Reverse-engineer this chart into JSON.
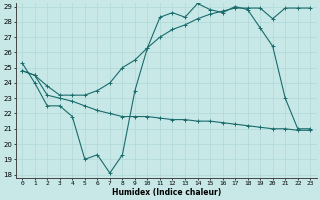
{
  "xlabel": "Humidex (Indice chaleur)",
  "xlim": [
    -0.5,
    23.5
  ],
  "ylim": [
    18,
    29
  ],
  "yticks": [
    18,
    19,
    20,
    21,
    22,
    23,
    24,
    25,
    26,
    27,
    28,
    29
  ],
  "xticks": [
    0,
    1,
    2,
    3,
    4,
    5,
    6,
    7,
    8,
    9,
    10,
    11,
    12,
    13,
    14,
    15,
    16,
    17,
    18,
    19,
    20,
    21,
    22,
    23
  ],
  "bg_color": "#c8e8e8",
  "grid_color": "#b0d8d8",
  "line_color": "#1a6b6b",
  "line1_x": [
    0,
    1,
    2,
    3,
    4,
    5,
    6,
    7,
    8,
    9,
    10,
    11,
    12,
    13,
    14,
    15,
    16,
    17,
    18,
    19,
    20,
    21,
    22,
    23
  ],
  "line1_y": [
    25.3,
    24.0,
    22.5,
    22.5,
    21.8,
    19.0,
    19.3,
    18.1,
    19.3,
    23.5,
    26.3,
    28.3,
    28.6,
    28.3,
    29.2,
    28.8,
    28.6,
    29.0,
    28.8,
    27.6,
    26.4,
    23.0,
    21.0,
    21.0
  ],
  "line2_x": [
    0,
    1,
    2,
    3,
    4,
    5,
    6,
    7,
    8,
    9,
    10,
    11,
    12,
    13,
    14,
    15,
    16,
    17,
    18,
    19,
    20,
    21,
    22,
    23
  ],
  "line2_y": [
    24.8,
    24.5,
    23.2,
    23.0,
    22.8,
    22.5,
    22.2,
    22.0,
    21.8,
    21.8,
    21.8,
    21.7,
    21.6,
    21.6,
    21.5,
    21.5,
    21.4,
    21.3,
    21.2,
    21.1,
    21.0,
    21.0,
    20.9,
    20.9
  ],
  "line3_x": [
    0,
    1,
    2,
    3,
    4,
    5,
    6,
    7,
    8,
    9,
    10,
    11,
    12,
    13,
    14,
    15,
    16,
    17,
    18,
    19,
    20,
    21,
    22,
    23
  ],
  "line3_y": [
    24.8,
    24.5,
    23.8,
    23.2,
    23.2,
    23.2,
    23.5,
    24.0,
    25.0,
    25.5,
    26.3,
    27.0,
    27.5,
    27.8,
    28.2,
    28.5,
    28.7,
    28.9,
    28.9,
    28.9,
    28.2,
    28.9,
    28.9,
    28.9
  ],
  "marker": "+",
  "markersize": 3,
  "linewidth": 0.8
}
